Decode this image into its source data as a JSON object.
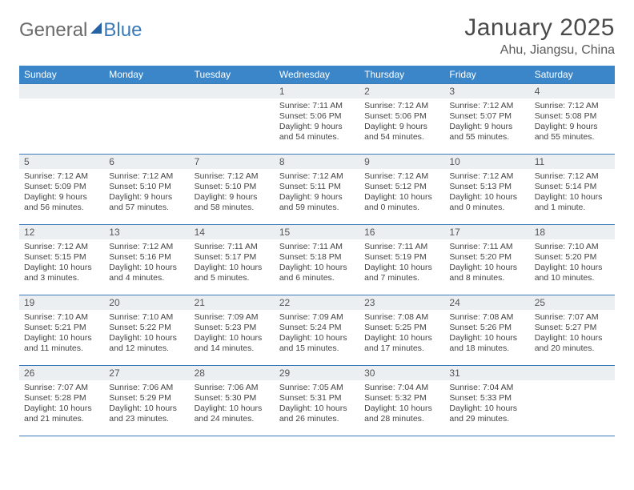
{
  "logo": {
    "part1": "General",
    "part2": "Blue"
  },
  "title": "January 2025",
  "location": "Ahu, Jiangsu, China",
  "colors": {
    "header_bg": "#3a86c8",
    "header_text": "#ffffff",
    "border": "#3a7ab8",
    "daynum_bg": "#eceff1",
    "text": "#444444",
    "logo_gray": "#6a6a6a",
    "logo_blue": "#3a7ab8"
  },
  "weekdays": [
    "Sunday",
    "Monday",
    "Tuesday",
    "Wednesday",
    "Thursday",
    "Friday",
    "Saturday"
  ],
  "weeks": [
    [
      {
        "n": "",
        "lines": []
      },
      {
        "n": "",
        "lines": []
      },
      {
        "n": "",
        "lines": []
      },
      {
        "n": "1",
        "lines": [
          "Sunrise: 7:11 AM",
          "Sunset: 5:06 PM",
          "Daylight: 9 hours",
          "and 54 minutes."
        ]
      },
      {
        "n": "2",
        "lines": [
          "Sunrise: 7:12 AM",
          "Sunset: 5:06 PM",
          "Daylight: 9 hours",
          "and 54 minutes."
        ]
      },
      {
        "n": "3",
        "lines": [
          "Sunrise: 7:12 AM",
          "Sunset: 5:07 PM",
          "Daylight: 9 hours",
          "and 55 minutes."
        ]
      },
      {
        "n": "4",
        "lines": [
          "Sunrise: 7:12 AM",
          "Sunset: 5:08 PM",
          "Daylight: 9 hours",
          "and 55 minutes."
        ]
      }
    ],
    [
      {
        "n": "5",
        "lines": [
          "Sunrise: 7:12 AM",
          "Sunset: 5:09 PM",
          "Daylight: 9 hours",
          "and 56 minutes."
        ]
      },
      {
        "n": "6",
        "lines": [
          "Sunrise: 7:12 AM",
          "Sunset: 5:10 PM",
          "Daylight: 9 hours",
          "and 57 minutes."
        ]
      },
      {
        "n": "7",
        "lines": [
          "Sunrise: 7:12 AM",
          "Sunset: 5:10 PM",
          "Daylight: 9 hours",
          "and 58 minutes."
        ]
      },
      {
        "n": "8",
        "lines": [
          "Sunrise: 7:12 AM",
          "Sunset: 5:11 PM",
          "Daylight: 9 hours",
          "and 59 minutes."
        ]
      },
      {
        "n": "9",
        "lines": [
          "Sunrise: 7:12 AM",
          "Sunset: 5:12 PM",
          "Daylight: 10 hours",
          "and 0 minutes."
        ]
      },
      {
        "n": "10",
        "lines": [
          "Sunrise: 7:12 AM",
          "Sunset: 5:13 PM",
          "Daylight: 10 hours",
          "and 0 minutes."
        ]
      },
      {
        "n": "11",
        "lines": [
          "Sunrise: 7:12 AM",
          "Sunset: 5:14 PM",
          "Daylight: 10 hours",
          "and 1 minute."
        ]
      }
    ],
    [
      {
        "n": "12",
        "lines": [
          "Sunrise: 7:12 AM",
          "Sunset: 5:15 PM",
          "Daylight: 10 hours",
          "and 3 minutes."
        ]
      },
      {
        "n": "13",
        "lines": [
          "Sunrise: 7:12 AM",
          "Sunset: 5:16 PM",
          "Daylight: 10 hours",
          "and 4 minutes."
        ]
      },
      {
        "n": "14",
        "lines": [
          "Sunrise: 7:11 AM",
          "Sunset: 5:17 PM",
          "Daylight: 10 hours",
          "and 5 minutes."
        ]
      },
      {
        "n": "15",
        "lines": [
          "Sunrise: 7:11 AM",
          "Sunset: 5:18 PM",
          "Daylight: 10 hours",
          "and 6 minutes."
        ]
      },
      {
        "n": "16",
        "lines": [
          "Sunrise: 7:11 AM",
          "Sunset: 5:19 PM",
          "Daylight: 10 hours",
          "and 7 minutes."
        ]
      },
      {
        "n": "17",
        "lines": [
          "Sunrise: 7:11 AM",
          "Sunset: 5:20 PM",
          "Daylight: 10 hours",
          "and 8 minutes."
        ]
      },
      {
        "n": "18",
        "lines": [
          "Sunrise: 7:10 AM",
          "Sunset: 5:20 PM",
          "Daylight: 10 hours",
          "and 10 minutes."
        ]
      }
    ],
    [
      {
        "n": "19",
        "lines": [
          "Sunrise: 7:10 AM",
          "Sunset: 5:21 PM",
          "Daylight: 10 hours",
          "and 11 minutes."
        ]
      },
      {
        "n": "20",
        "lines": [
          "Sunrise: 7:10 AM",
          "Sunset: 5:22 PM",
          "Daylight: 10 hours",
          "and 12 minutes."
        ]
      },
      {
        "n": "21",
        "lines": [
          "Sunrise: 7:09 AM",
          "Sunset: 5:23 PM",
          "Daylight: 10 hours",
          "and 14 minutes."
        ]
      },
      {
        "n": "22",
        "lines": [
          "Sunrise: 7:09 AM",
          "Sunset: 5:24 PM",
          "Daylight: 10 hours",
          "and 15 minutes."
        ]
      },
      {
        "n": "23",
        "lines": [
          "Sunrise: 7:08 AM",
          "Sunset: 5:25 PM",
          "Daylight: 10 hours",
          "and 17 minutes."
        ]
      },
      {
        "n": "24",
        "lines": [
          "Sunrise: 7:08 AM",
          "Sunset: 5:26 PM",
          "Daylight: 10 hours",
          "and 18 minutes."
        ]
      },
      {
        "n": "25",
        "lines": [
          "Sunrise: 7:07 AM",
          "Sunset: 5:27 PM",
          "Daylight: 10 hours",
          "and 20 minutes."
        ]
      }
    ],
    [
      {
        "n": "26",
        "lines": [
          "Sunrise: 7:07 AM",
          "Sunset: 5:28 PM",
          "Daylight: 10 hours",
          "and 21 minutes."
        ]
      },
      {
        "n": "27",
        "lines": [
          "Sunrise: 7:06 AM",
          "Sunset: 5:29 PM",
          "Daylight: 10 hours",
          "and 23 minutes."
        ]
      },
      {
        "n": "28",
        "lines": [
          "Sunrise: 7:06 AM",
          "Sunset: 5:30 PM",
          "Daylight: 10 hours",
          "and 24 minutes."
        ]
      },
      {
        "n": "29",
        "lines": [
          "Sunrise: 7:05 AM",
          "Sunset: 5:31 PM",
          "Daylight: 10 hours",
          "and 26 minutes."
        ]
      },
      {
        "n": "30",
        "lines": [
          "Sunrise: 7:04 AM",
          "Sunset: 5:32 PM",
          "Daylight: 10 hours",
          "and 28 minutes."
        ]
      },
      {
        "n": "31",
        "lines": [
          "Sunrise: 7:04 AM",
          "Sunset: 5:33 PM",
          "Daylight: 10 hours",
          "and 29 minutes."
        ]
      },
      {
        "n": "",
        "lines": []
      }
    ]
  ]
}
